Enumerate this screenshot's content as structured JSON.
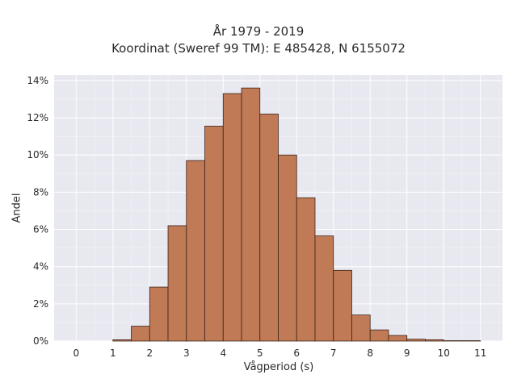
{
  "chart_data": {
    "type": "bar",
    "title": "År 1979 - 2019",
    "subtitle": "Koordinat (Sweref 99 TM): E 485428, N 6155072",
    "xlabel": "Vågperiod (s)",
    "ylabel": "Andel",
    "bin_width": 0.5,
    "bin_starts": [
      1.0,
      1.5,
      2.0,
      2.5,
      3.0,
      3.5,
      4.0,
      4.5,
      5.0,
      5.5,
      6.0,
      6.5,
      7.0,
      7.5,
      8.0,
      8.5,
      9.0,
      9.5,
      10.0,
      10.5
    ],
    "values": [
      0.07,
      0.8,
      2.9,
      6.2,
      9.7,
      11.55,
      13.3,
      13.6,
      12.2,
      10.0,
      7.7,
      5.65,
      3.8,
      1.4,
      0.6,
      0.3,
      0.1,
      0.07,
      0.02,
      0.02
    ],
    "xlim": [
      -0.6,
      11.6
    ],
    "ylim": [
      0,
      14.3
    ],
    "x_ticks": [
      0,
      1,
      2,
      3,
      4,
      5,
      6,
      7,
      8,
      9,
      10,
      11
    ],
    "x_tick_labels": [
      "0",
      "1",
      "2",
      "3",
      "4",
      "5",
      "6",
      "7",
      "8",
      "9",
      "10",
      "11"
    ],
    "y_ticks": [
      0,
      2,
      4,
      6,
      8,
      10,
      12,
      14
    ],
    "y_tick_labels": [
      "0%",
      "2%",
      "4%",
      "6%",
      "8%",
      "10%",
      "12%",
      "14%"
    ],
    "grid": true,
    "colors": {
      "bar": "#c07a56",
      "bar_edge": "#3d2418",
      "plot_background": "#e8e8f0",
      "grid": "#ffffff"
    }
  }
}
